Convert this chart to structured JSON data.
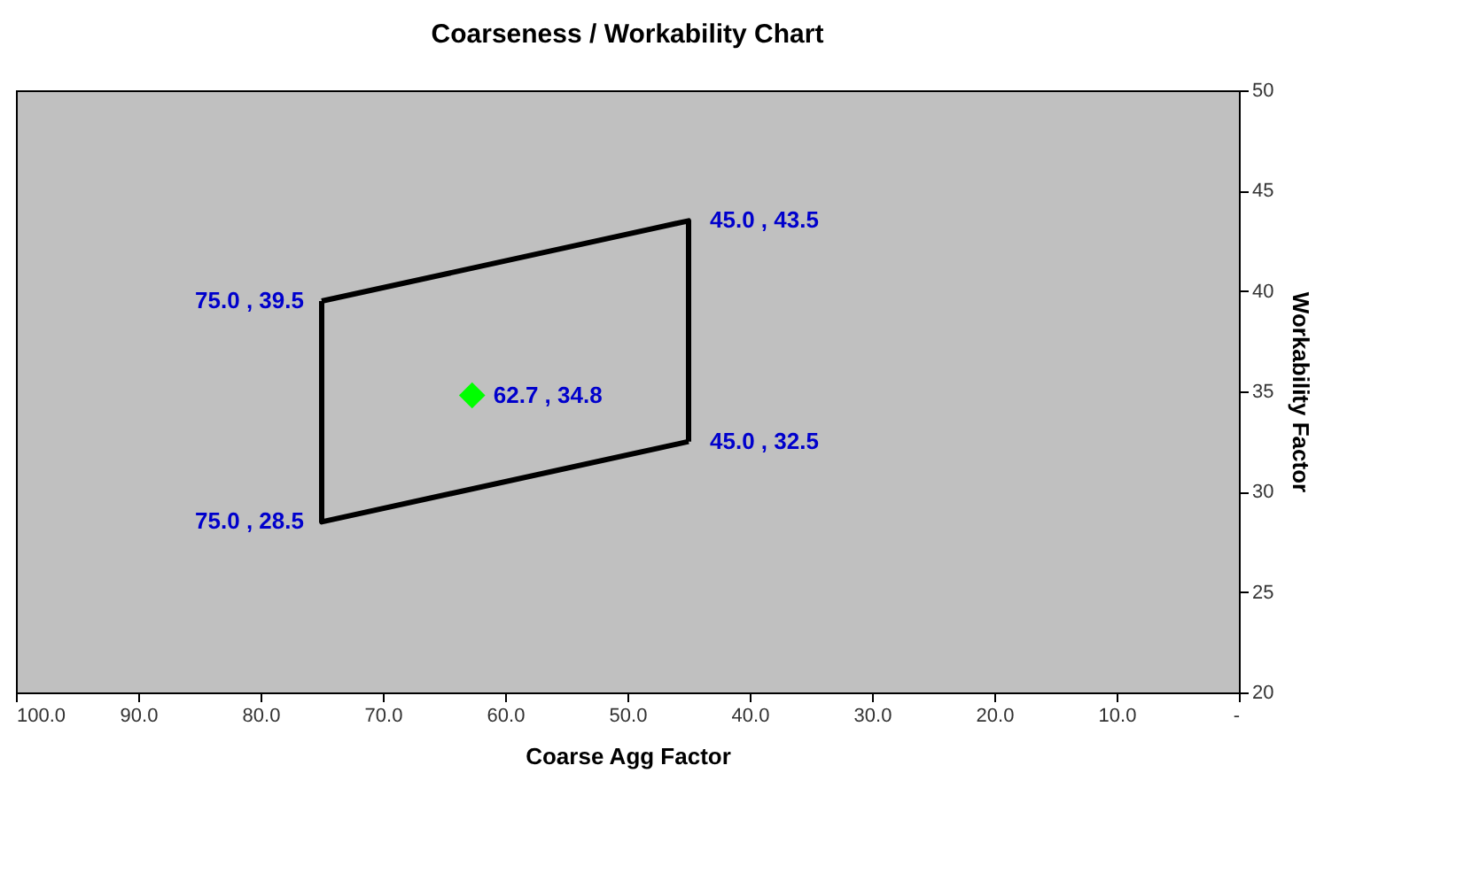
{
  "chart_data": {
    "type": "line",
    "title": "Coarseness / Workability Chart",
    "xlabel": "Coarse Agg Factor",
    "ylabel": "Workability Factor",
    "xlim": [
      100,
      0
    ],
    "xticks": [
      {
        "value": 100,
        "label": "100.0"
      },
      {
        "value": 90,
        "label": "90.0"
      },
      {
        "value": 80,
        "label": "80.0"
      },
      {
        "value": 70,
        "label": "70.0"
      },
      {
        "value": 60,
        "label": "60.0"
      },
      {
        "value": 50,
        "label": "50.0"
      },
      {
        "value": 40,
        "label": "40.0"
      },
      {
        "value": 30,
        "label": "30.0"
      },
      {
        "value": 20,
        "label": "20.0"
      },
      {
        "value": 10,
        "label": "10.0"
      },
      {
        "value": 0,
        "label": "-"
      }
    ],
    "ylim": [
      20,
      50
    ],
    "yticks": [
      20,
      25,
      30,
      35,
      40,
      45,
      50
    ],
    "grid": false,
    "series": [
      {
        "type": "line",
        "color": "#000000",
        "x": [
          75,
          45,
          45
        ],
        "values": [
          39.5,
          43.5,
          32.5
        ],
        "marker": "none"
      },
      {
        "type": "line",
        "color": "#000000",
        "x": [
          45,
          75,
          75
        ],
        "values": [
          32.5,
          28.5,
          39.5
        ],
        "marker": "none"
      },
      {
        "type": "scatter",
        "color": "#00ff00",
        "x": [
          62.7
        ],
        "values": [
          34.8
        ],
        "marker": "diamond"
      }
    ],
    "annotations": [
      {
        "text": "75.0 ,  39.5",
        "x": 75,
        "y": 39.5
      },
      {
        "text": "45.0 ,  43.5",
        "x": 45,
        "y": 43.5
      },
      {
        "text": "62.7 ,  34.8",
        "x": 62.7,
        "y": 34.8
      },
      {
        "text": "45.0 ,  32.5",
        "x": 45,
        "y": 32.5
      },
      {
        "text": "75.0 ,  28.5",
        "x": 75,
        "y": 28.5
      }
    ]
  }
}
